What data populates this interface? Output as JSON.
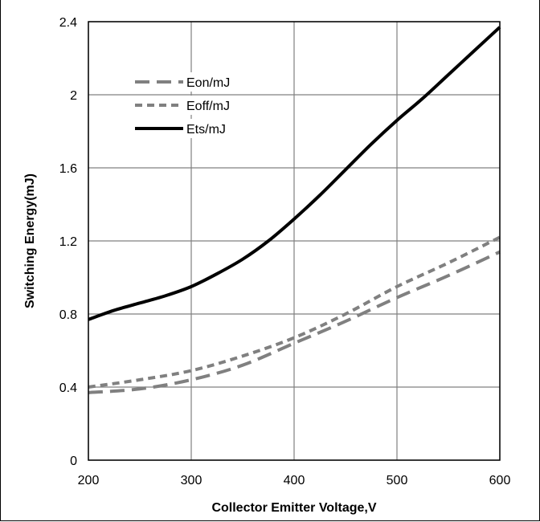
{
  "chart_data": {
    "type": "line",
    "title": "",
    "xlabel": "Collector Emitter Voltage,V",
    "ylabel": "Switching Energy(mJ)",
    "xlim": [
      200,
      600
    ],
    "ylim": [
      0,
      2.4
    ],
    "x_ticks": [
      "200",
      "300",
      "400",
      "500",
      "600"
    ],
    "y_ticks": [
      "0",
      "0.4",
      "0.8",
      "1.2",
      "1.6",
      "2",
      "2.4"
    ],
    "grid": true,
    "legend_position": "top-left",
    "series": [
      {
        "name": "Eon/mJ",
        "style": "long-dash",
        "color": "#808080",
        "x": [
          200,
          250,
          300,
          350,
          400,
          450,
          500,
          550,
          600
        ],
        "y": [
          0.37,
          0.39,
          0.44,
          0.52,
          0.64,
          0.76,
          0.89,
          1.01,
          1.14
        ]
      },
      {
        "name": "Eoff/mJ",
        "style": "short-dash",
        "color": "#808080",
        "x": [
          200,
          250,
          300,
          350,
          400,
          450,
          500,
          550,
          600
        ],
        "y": [
          0.4,
          0.44,
          0.49,
          0.57,
          0.67,
          0.8,
          0.95,
          1.08,
          1.22
        ]
      },
      {
        "name": "Ets/mJ",
        "style": "solid",
        "color": "#000000",
        "x": [
          200,
          225,
          250,
          275,
          300,
          325,
          350,
          375,
          400,
          425,
          450,
          475,
          500,
          525,
          550,
          575,
          600
        ],
        "y": [
          0.77,
          0.82,
          0.86,
          0.9,
          0.95,
          1.02,
          1.1,
          1.2,
          1.32,
          1.45,
          1.59,
          1.73,
          1.86,
          1.98,
          2.11,
          2.24,
          2.37
        ]
      }
    ]
  }
}
